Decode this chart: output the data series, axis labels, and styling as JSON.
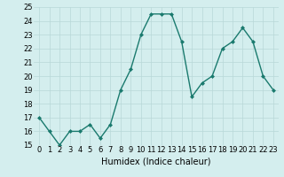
{
  "x": [
    0,
    1,
    2,
    3,
    4,
    5,
    6,
    7,
    8,
    9,
    10,
    11,
    12,
    13,
    14,
    15,
    16,
    17,
    18,
    19,
    20,
    21,
    22,
    23
  ],
  "y": [
    17.0,
    16.0,
    15.0,
    16.0,
    16.0,
    16.5,
    15.5,
    16.5,
    19.0,
    20.5,
    23.0,
    24.5,
    24.5,
    24.5,
    22.5,
    18.5,
    19.5,
    20.0,
    22.0,
    22.5,
    23.5,
    22.5,
    20.0,
    19.0
  ],
  "line_color": "#1a7a6e",
  "marker_color": "#1a7a6e",
  "bg_color": "#d4eeee",
  "grid_color": "#b8d8d8",
  "xlabel": "Humidex (Indice chaleur)",
  "ylim": [
    15,
    25
  ],
  "xlim_min": -0.5,
  "xlim_max": 23.5,
  "yticks": [
    15,
    16,
    17,
    18,
    19,
    20,
    21,
    22,
    23,
    24,
    25
  ],
  "xticks": [
    0,
    1,
    2,
    3,
    4,
    5,
    6,
    7,
    8,
    9,
    10,
    11,
    12,
    13,
    14,
    15,
    16,
    17,
    18,
    19,
    20,
    21,
    22,
    23
  ],
  "tick_fontsize": 6,
  "xlabel_fontsize": 7,
  "linewidth": 1.0,
  "markersize": 2.0
}
